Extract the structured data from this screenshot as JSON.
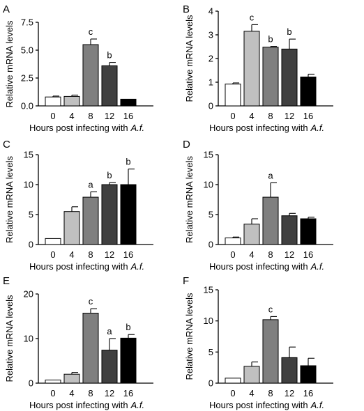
{
  "figure": {
    "bar_colors": [
      "#ffffff",
      "#c0c0c0",
      "#7f7f7f",
      "#404040",
      "#000000"
    ]
  },
  "chart_data": [
    {
      "type": "bar",
      "panel": "A",
      "categories": [
        "0",
        "4",
        "8",
        "12",
        "16"
      ],
      "values": [
        0.8,
        0.85,
        5.5,
        3.6,
        0.6
      ],
      "errors": [
        0.08,
        0.12,
        0.5,
        0.3,
        0.0
      ],
      "significance": [
        "",
        "",
        "c",
        "b",
        ""
      ],
      "ylim": [
        0,
        7.5
      ],
      "yticks": [
        0.0,
        2.5,
        5.0,
        7.5
      ],
      "ytick_labels": [
        "0.0",
        "2.5",
        "5.0",
        "7.5"
      ],
      "ylabel": "Relative mRNA levels",
      "xlabel": "Hours post infecting with",
      "xlabel_italic": "A.f.",
      "grid": false
    },
    {
      "type": "bar",
      "panel": "B",
      "categories": [
        "0",
        "4",
        "8",
        "12",
        "16"
      ],
      "values": [
        0.92,
        3.15,
        2.48,
        2.4,
        1.22
      ],
      "errors": [
        0.05,
        0.28,
        0.03,
        0.42,
        0.12
      ],
      "significance": [
        "",
        "c",
        "b",
        "b",
        ""
      ],
      "ylim": [
        0,
        4
      ],
      "yticks": [
        0,
        1,
        2,
        3,
        4
      ],
      "ytick_labels": [
        "0",
        "1",
        "2",
        "3",
        "4"
      ],
      "ylabel": "Relative mRNA levels",
      "xlabel": "Hours post infecting with",
      "xlabel_italic": "A.f.",
      "grid": false
    },
    {
      "type": "bar",
      "panel": "C",
      "categories": [
        "0",
        "4",
        "8",
        "12",
        "16"
      ],
      "values": [
        1.0,
        5.5,
        7.9,
        10.0,
        10.0
      ],
      "errors": [
        0.0,
        0.8,
        0.9,
        0.35,
        2.6
      ],
      "significance": [
        "",
        "",
        "a",
        "b",
        "b"
      ],
      "ylim": [
        0,
        15
      ],
      "yticks": [
        0,
        5,
        10,
        15
      ],
      "ytick_labels": [
        "0",
        "5",
        "10",
        "15"
      ],
      "ylabel": "Relative mRNA levels",
      "xlabel": "Hours post infecting with",
      "xlabel_italic": "A.f.",
      "grid": false
    },
    {
      "type": "bar",
      "panel": "D",
      "categories": [
        "0",
        "4",
        "8",
        "12",
        "16"
      ],
      "values": [
        1.1,
        3.4,
        7.9,
        4.8,
        4.3
      ],
      "errors": [
        0.15,
        0.9,
        2.4,
        0.4,
        0.25
      ],
      "significance": [
        "",
        "",
        "a",
        "",
        ""
      ],
      "ylim": [
        0,
        15
      ],
      "yticks": [
        0,
        5,
        10,
        15
      ],
      "ytick_labels": [
        "0",
        "5",
        "10",
        "15"
      ],
      "ylabel": "Relative mRNA levels",
      "xlabel": "Hours post infecting with",
      "xlabel_italic": "A.f.",
      "grid": false
    },
    {
      "type": "bar",
      "panel": "E",
      "categories": [
        "0",
        "4",
        "8",
        "12",
        "16"
      ],
      "values": [
        0.7,
        2.0,
        15.7,
        7.4,
        10.1
      ],
      "errors": [
        0.0,
        0.4,
        1.0,
        2.6,
        0.8
      ],
      "significance": [
        "",
        "",
        "c",
        "a",
        "b"
      ],
      "ylim": [
        0,
        20
      ],
      "yticks": [
        0,
        10,
        20
      ],
      "ytick_labels": [
        "0",
        "10",
        "20"
      ],
      "ylabel": "Relative mRNA levels",
      "xlabel": "Hours post infecting with",
      "xlabel_italic": "A.f.",
      "grid": false
    },
    {
      "type": "bar",
      "panel": "F",
      "categories": [
        "0",
        "4",
        "8",
        "12",
        "16"
      ],
      "values": [
        0.8,
        2.7,
        10.2,
        4.1,
        2.8
      ],
      "errors": [
        0.0,
        0.7,
        0.5,
        1.7,
        1.2
      ],
      "significance": [
        "",
        "",
        "c",
        "",
        ""
      ],
      "ylim": [
        0,
        15
      ],
      "yticks": [
        0,
        5,
        10,
        15
      ],
      "ytick_labels": [
        "0",
        "5",
        "10",
        "15"
      ],
      "ylabel": "Relative mRNA levels",
      "xlabel": "Hours post infecting with",
      "xlabel_italic": "A.f.",
      "grid": false
    }
  ]
}
